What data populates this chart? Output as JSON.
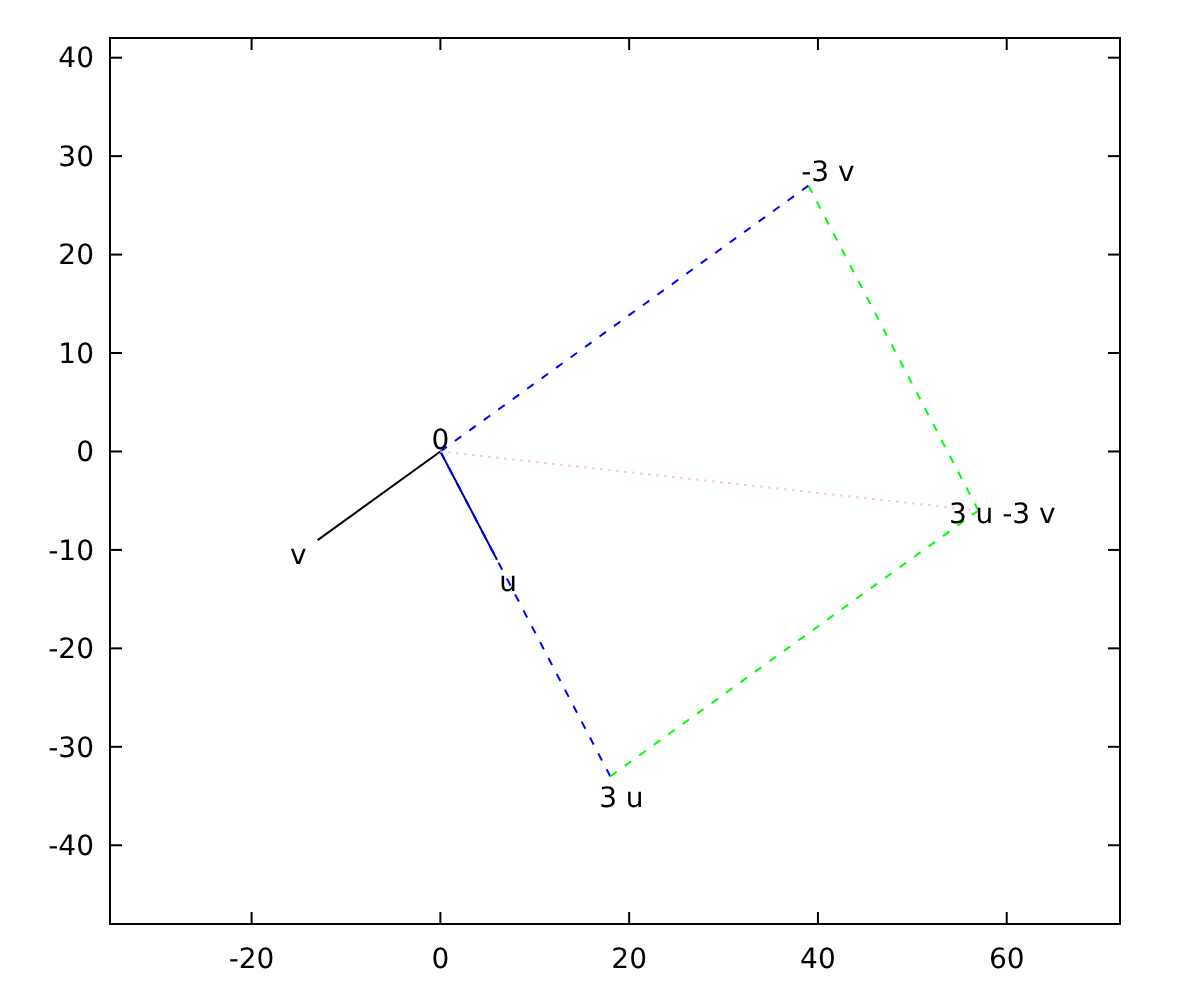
{
  "chart_data": {
    "type": "line",
    "xlim": [
      -35,
      72
    ],
    "ylim": [
      -48,
      42
    ],
    "xticks": [
      -20,
      0,
      20,
      40,
      60
    ],
    "yticks": [
      -40,
      -30,
      -20,
      -10,
      0,
      10,
      20,
      30,
      40
    ],
    "grid": false,
    "marker": "none",
    "series": [
      {
        "color": "#000000",
        "x": [
          0,
          -13
        ],
        "values": [
          0,
          -9
        ],
        "line_style": "solid"
      },
      {
        "color": "#00008b",
        "x": [
          0,
          6
        ],
        "values": [
          0,
          -11
        ],
        "line_style": "solid"
      },
      {
        "color": "#0000ff",
        "x": [
          0,
          18
        ],
        "values": [
          0,
          -33
        ],
        "line_style": "dashed"
      },
      {
        "color": "#0000ff",
        "x": [
          0,
          39
        ],
        "values": [
          0,
          27
        ],
        "line_style": "dashed"
      },
      {
        "color": "#00ff00",
        "x": [
          18,
          57
        ],
        "values": [
          -33,
          -6
        ],
        "line_style": "dashed"
      },
      {
        "color": "#00ff00",
        "x": [
          39,
          57
        ],
        "values": [
          27,
          -6
        ],
        "line_style": "dashed"
      },
      {
        "color": "#ffb6c1",
        "x": [
          0,
          57
        ],
        "values": [
          0,
          -6
        ],
        "line_style": "dotted"
      }
    ],
    "annotations": [
      {
        "text": "0",
        "x": 0,
        "y": 0
      },
      {
        "text": "v",
        "x": -13,
        "y": -9
      },
      {
        "text": "u",
        "x": 6,
        "y": -11
      },
      {
        "text": "3 u",
        "x": 18,
        "y": -33
      },
      {
        "text": "-3 v",
        "x": 39,
        "y": 27
      },
      {
        "text": "3 u -3 v",
        "x": 57,
        "y": -6
      }
    ]
  }
}
